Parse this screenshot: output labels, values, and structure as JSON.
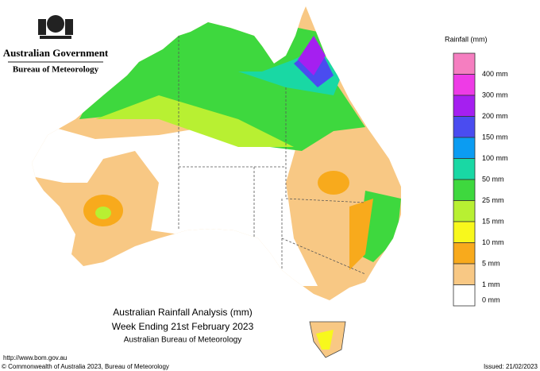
{
  "header": {
    "government": "Australian Government",
    "agency": "Bureau of Meteorology"
  },
  "legend": {
    "title": "Rainfall (mm)",
    "items": [
      {
        "label": "400 mm",
        "color": "#f57ec0"
      },
      {
        "label": "300 mm",
        "color": "#ee3be6"
      },
      {
        "label": "200 mm",
        "color": "#a51ff0"
      },
      {
        "label": "150 mm",
        "color": "#4a4cf0"
      },
      {
        "label": "100 mm",
        "color": "#0b9cf2"
      },
      {
        "label": "50 mm",
        "color": "#19d8a4"
      },
      {
        "label": "25 mm",
        "color": "#3ed83e"
      },
      {
        "label": "15 mm",
        "color": "#b8f032"
      },
      {
        "label": "10 mm",
        "color": "#f8f81c"
      },
      {
        "label": "5 mm",
        "color": "#f8aa1c"
      },
      {
        "label": "1 mm",
        "color": "#f8c884"
      },
      {
        "label": "0 mm",
        "color": "#ffffff"
      }
    ]
  },
  "caption": {
    "title": "Australian Rainfall Analysis (mm)",
    "subtitle": "Week Ending 21st February 2023",
    "source": "Australian Bureau of Meteorology"
  },
  "footer": {
    "url": "http://www.bom.gov.au",
    "copyright": "© Commonwealth of Australia 2023, Bureau of Meteorology",
    "issued": "Issued: 21/02/2023"
  }
}
